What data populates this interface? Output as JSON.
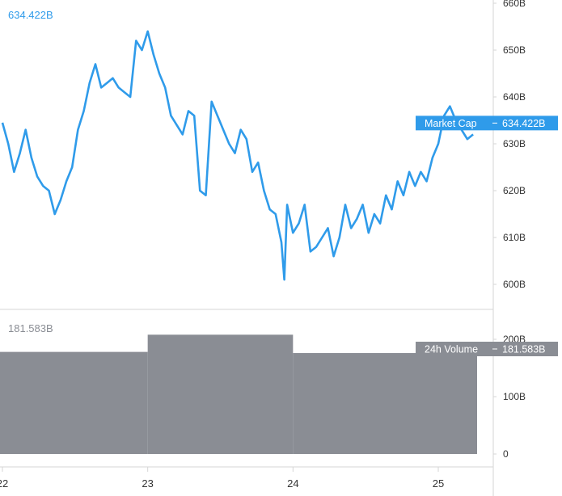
{
  "chart_data": [
    {
      "type": "line",
      "title": "",
      "series": [
        {
          "name": "Market Cap",
          "color": "#2f9bea",
          "x": [
            22.0,
            22.04,
            22.08,
            22.12,
            22.16,
            22.2,
            22.24,
            22.28,
            22.32,
            22.36,
            22.4,
            22.44,
            22.48,
            22.52,
            22.56,
            22.6,
            22.64,
            22.68,
            22.72,
            22.76,
            22.8,
            22.84,
            22.88,
            22.92,
            22.96,
            23.0,
            23.04,
            23.08,
            23.12,
            23.16,
            23.2,
            23.24,
            23.28,
            23.32,
            23.36,
            23.4,
            23.44,
            23.48,
            23.52,
            23.56,
            23.6,
            23.64,
            23.68,
            23.72,
            23.76,
            23.8,
            23.84,
            23.88,
            23.92,
            23.94,
            23.96,
            24.0,
            24.04,
            24.08,
            24.12,
            24.16,
            24.2,
            24.24,
            24.28,
            24.32,
            24.36,
            24.4,
            24.44,
            24.48,
            24.52,
            24.56,
            24.6,
            24.64,
            24.68,
            24.72,
            24.76,
            24.8,
            24.84,
            24.88,
            24.92,
            24.96,
            25.0,
            25.04,
            25.08,
            25.12,
            25.16,
            25.2,
            25.24
          ],
          "values": [
            634.5,
            630,
            624,
            628,
            633,
            627,
            623,
            621,
            620,
            615,
            618,
            622,
            625,
            633,
            637,
            643,
            647,
            642,
            643,
            644,
            642,
            641,
            640,
            652,
            650,
            654,
            649,
            645,
            642,
            636,
            634,
            632,
            637,
            636,
            620,
            619,
            639,
            636,
            633,
            630,
            628,
            633,
            631,
            624,
            626,
            620,
            616,
            615,
            609,
            601,
            617,
            611,
            613,
            617,
            607,
            608,
            610,
            612,
            606,
            610,
            617,
            612,
            614,
            617,
            611,
            615,
            613,
            619,
            616,
            622,
            619,
            624,
            621,
            624,
            622,
            627,
            630,
            636,
            638,
            635,
            633,
            631,
            632
          ]
        }
      ],
      "ylim": [
        597,
        662
      ],
      "y_ticks": [
        "600B",
        "610B",
        "620B",
        "630B",
        "640B",
        "650B",
        "660B"
      ],
      "y_tick_values": [
        600,
        610,
        620,
        630,
        640,
        650,
        660
      ],
      "xlim": [
        22.0,
        25.35
      ],
      "x_ticks": [
        "22",
        "23",
        "24",
        "25"
      ],
      "x_tick_values": [
        22,
        23,
        24,
        25
      ],
      "current_label": "634.422B",
      "current_value": 634.422,
      "tag_name": "Market Cap",
      "grid": false,
      "legend": "none"
    },
    {
      "type": "bar",
      "series": [
        {
          "name": "24h Volume",
          "color": "#8a8d94",
          "categories": [
            "22",
            "23",
            "24",
            "25"
          ],
          "values": [
            178,
            208,
            176,
            176
          ]
        }
      ],
      "ylim": [
        0,
        215
      ],
      "y_ticks": [
        "0",
        "100B",
        "200B"
      ],
      "y_tick_values": [
        0,
        100,
        200
      ],
      "current_label": "181.583B",
      "current_value": 181.583,
      "tag_name": "24h Volume",
      "grid": false,
      "legend": "none"
    }
  ],
  "colors": {
    "line": "#2f9bea",
    "volume": "#8a8d94",
    "axis": "#d6d6d6"
  }
}
